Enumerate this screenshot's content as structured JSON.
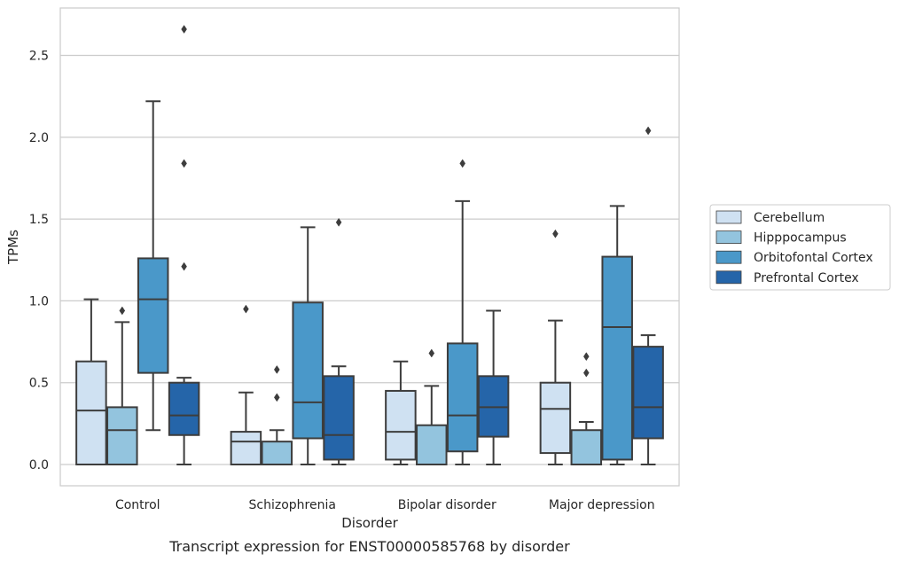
{
  "chart_data": {
    "type": "box",
    "title": "",
    "caption": "Transcript expression for ENST00000585768 by disorder",
    "xlabel": "Disorder",
    "ylabel": "TPMs",
    "ylim": [
      -0.13,
      2.79
    ],
    "yticks": [
      0.0,
      0.5,
      1.0,
      1.5,
      2.0,
      2.5
    ],
    "ytick_labels": [
      "0.0",
      "0.5",
      "1.0",
      "1.5",
      "2.0",
      "2.5"
    ],
    "grid": true,
    "legend_position": "right",
    "categories": [
      "Control",
      "Schizophrenia",
      "Bipolar disorder",
      "Major depression"
    ],
    "series": [
      {
        "name": "Cerebellum",
        "color": "#cfe1f2",
        "boxes": [
          {
            "whislo": 0.0,
            "q1": 0.0,
            "med": 0.33,
            "q3": 0.63,
            "whishi": 1.01,
            "fliers": []
          },
          {
            "whislo": 0.0,
            "q1": 0.0,
            "med": 0.14,
            "q3": 0.2,
            "whishi": 0.44,
            "fliers": [
              0.95
            ]
          },
          {
            "whislo": 0.0,
            "q1": 0.03,
            "med": 0.2,
            "q3": 0.45,
            "whishi": 0.63,
            "fliers": []
          },
          {
            "whislo": 0.0,
            "q1": 0.07,
            "med": 0.34,
            "q3": 0.5,
            "whishi": 0.88,
            "fliers": [
              1.41
            ]
          }
        ]
      },
      {
        "name": "Hipppocampus",
        "color": "#93c4de",
        "boxes": [
          {
            "whislo": 0.0,
            "q1": 0.0,
            "med": 0.21,
            "q3": 0.35,
            "whishi": 0.87,
            "fliers": [
              0.94
            ]
          },
          {
            "whislo": 0.0,
            "q1": 0.0,
            "med": 0.0,
            "q3": 0.14,
            "whishi": 0.21,
            "fliers": [
              0.41,
              0.58
            ]
          },
          {
            "whislo": 0.0,
            "q1": 0.0,
            "med": 0.0,
            "q3": 0.24,
            "whishi": 0.48,
            "fliers": [
              0.68
            ]
          },
          {
            "whislo": 0.0,
            "q1": 0.0,
            "med": 0.0,
            "q3": 0.21,
            "whishi": 0.26,
            "fliers": [
              0.56,
              0.66
            ]
          }
        ]
      },
      {
        "name": "Orbitofontal Cortex",
        "color": "#4a98c9",
        "boxes": [
          {
            "whislo": 0.21,
            "q1": 0.56,
            "med": 1.01,
            "q3": 1.26,
            "whishi": 2.22,
            "fliers": []
          },
          {
            "whislo": 0.0,
            "q1": 0.16,
            "med": 0.38,
            "q3": 0.99,
            "whishi": 1.45,
            "fliers": []
          },
          {
            "whislo": 0.0,
            "q1": 0.08,
            "med": 0.3,
            "q3": 0.74,
            "whishi": 1.61,
            "fliers": [
              1.84
            ]
          },
          {
            "whislo": 0.0,
            "q1": 0.03,
            "med": 0.84,
            "q3": 1.27,
            "whishi": 1.58,
            "fliers": []
          }
        ]
      },
      {
        "name": "Prefrontal Cortex",
        "color": "#2565a9",
        "boxes": [
          {
            "whislo": 0.0,
            "q1": 0.18,
            "med": 0.3,
            "q3": 0.5,
            "whishi": 0.53,
            "fliers": [
              1.21,
              1.84,
              2.66
            ]
          },
          {
            "whislo": 0.0,
            "q1": 0.03,
            "med": 0.18,
            "q3": 0.54,
            "whishi": 0.6,
            "fliers": [
              1.48
            ]
          },
          {
            "whislo": 0.0,
            "q1": 0.17,
            "med": 0.35,
            "q3": 0.54,
            "whishi": 0.94,
            "fliers": []
          },
          {
            "whislo": 0.0,
            "q1": 0.16,
            "med": 0.35,
            "q3": 0.72,
            "whishi": 0.79,
            "fliers": [
              2.04
            ]
          }
        ]
      }
    ]
  }
}
